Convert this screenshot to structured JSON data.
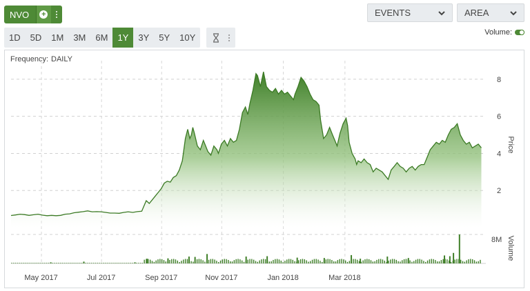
{
  "toolbar": {
    "ticker": "NVO",
    "events_label": "EVENTS",
    "chart_type_label": "AREA",
    "volume_label": "Volume:",
    "frequency_label": "Frequency:",
    "frequency_value": "DAILY",
    "ranges": [
      "1D",
      "5D",
      "1M",
      "3M",
      "6M",
      "1Y",
      "3Y",
      "5Y",
      "10Y"
    ],
    "active_range": "1Y"
  },
  "colors": {
    "accent": "#4e8a36",
    "area_top": "#4a8a34",
    "area_line": "#3b7a24"
  },
  "chart_data": {
    "type": "area",
    "title": "",
    "price_axis_label": "Price",
    "volume_axis_label": "Volume",
    "y_ticks": [
      2,
      4,
      6,
      8
    ],
    "volume_ticks": [
      "8M"
    ],
    "x_ticks": [
      "May 2017",
      "Jul 2017",
      "Sep 2017",
      "Nov 2017",
      "Jan 2018",
      "Mar 2018"
    ],
    "x_tick_months": [
      1,
      3,
      5,
      7,
      9,
      11
    ],
    "x_range_months": [
      0.0,
      13.4
    ],
    "ylim": [
      0,
      9
    ],
    "volume_max": 8,
    "series": [
      {
        "values": [
          [
            0.0,
            0.65
          ],
          [
            0.15,
            0.68
          ],
          [
            0.3,
            0.72
          ],
          [
            0.45,
            0.7
          ],
          [
            0.6,
            0.66
          ],
          [
            0.75,
            0.69
          ],
          [
            0.9,
            0.72
          ],
          [
            1.05,
            0.67
          ],
          [
            1.2,
            0.64
          ],
          [
            1.35,
            0.66
          ],
          [
            1.5,
            0.64
          ],
          [
            1.65,
            0.66
          ],
          [
            1.8,
            0.72
          ],
          [
            1.95,
            0.74
          ],
          [
            2.1,
            0.8
          ],
          [
            2.25,
            0.83
          ],
          [
            2.4,
            0.86
          ],
          [
            2.55,
            0.9
          ],
          [
            2.7,
            0.85
          ],
          [
            2.85,
            0.86
          ],
          [
            3.0,
            0.85
          ],
          [
            3.15,
            0.82
          ],
          [
            3.3,
            0.78
          ],
          [
            3.45,
            0.78
          ],
          [
            3.6,
            0.77
          ],
          [
            3.75,
            0.82
          ],
          [
            3.9,
            0.85
          ],
          [
            4.05,
            0.82
          ],
          [
            4.2,
            0.86
          ],
          [
            4.35,
            0.88
          ],
          [
            4.5,
            1.45
          ],
          [
            4.6,
            1.3
          ],
          [
            4.7,
            1.5
          ],
          [
            4.8,
            1.7
          ],
          [
            4.9,
            1.9
          ],
          [
            5.0,
            2.1
          ],
          [
            5.1,
            2.4
          ],
          [
            5.2,
            2.5
          ],
          [
            5.3,
            2.45
          ],
          [
            5.4,
            2.7
          ],
          [
            5.5,
            2.8
          ],
          [
            5.6,
            3.1
          ],
          [
            5.7,
            3.6
          ],
          [
            5.75,
            4.2
          ],
          [
            5.8,
            4.8
          ],
          [
            5.88,
            5.3
          ],
          [
            5.95,
            4.8
          ],
          [
            6.0,
            5.0
          ],
          [
            6.05,
            5.4
          ],
          [
            6.1,
            5.1
          ],
          [
            6.2,
            4.4
          ],
          [
            6.3,
            4.2
          ],
          [
            6.4,
            4.7
          ],
          [
            6.45,
            4.5
          ],
          [
            6.55,
            4.1
          ],
          [
            6.65,
            3.9
          ],
          [
            6.75,
            4.4
          ],
          [
            6.85,
            4.2
          ],
          [
            6.9,
            4.0
          ],
          [
            7.0,
            4.5
          ],
          [
            7.1,
            4.7
          ],
          [
            7.2,
            4.4
          ],
          [
            7.3,
            4.8
          ],
          [
            7.4,
            4.6
          ],
          [
            7.5,
            4.7
          ],
          [
            7.6,
            5.3
          ],
          [
            7.7,
            6.2
          ],
          [
            7.8,
            6.5
          ],
          [
            7.88,
            6.1
          ],
          [
            7.95,
            6.7
          ],
          [
            8.05,
            7.4
          ],
          [
            8.15,
            8.3
          ],
          [
            8.2,
            8.2
          ],
          [
            8.3,
            7.6
          ],
          [
            8.4,
            8.4
          ],
          [
            8.5,
            7.6
          ],
          [
            8.6,
            7.4
          ],
          [
            8.7,
            7.3
          ],
          [
            8.8,
            7.5
          ],
          [
            8.9,
            7.2
          ],
          [
            9.0,
            7.4
          ],
          [
            9.1,
            7.2
          ],
          [
            9.2,
            7.3
          ],
          [
            9.3,
            7.1
          ],
          [
            9.4,
            6.9
          ],
          [
            9.45,
            7.2
          ],
          [
            9.55,
            7.6
          ],
          [
            9.65,
            8.1
          ],
          [
            9.75,
            7.9
          ],
          [
            9.85,
            7.6
          ],
          [
            9.95,
            7.2
          ],
          [
            10.05,
            6.9
          ],
          [
            10.15,
            6.8
          ],
          [
            10.25,
            6.6
          ],
          [
            10.3,
            5.8
          ],
          [
            10.4,
            4.8
          ],
          [
            10.5,
            5.0
          ],
          [
            10.6,
            5.4
          ],
          [
            10.7,
            5.0
          ],
          [
            10.8,
            4.6
          ],
          [
            10.85,
            4.4
          ],
          [
            10.95,
            5.1
          ],
          [
            11.05,
            5.6
          ],
          [
            11.15,
            5.9
          ],
          [
            11.2,
            5.5
          ],
          [
            11.25,
            4.6
          ],
          [
            11.35,
            4.0
          ],
          [
            11.45,
            3.7
          ],
          [
            11.5,
            3.4
          ],
          [
            11.55,
            3.6
          ],
          [
            11.65,
            3.5
          ],
          [
            11.75,
            3.7
          ],
          [
            11.85,
            3.5
          ],
          [
            11.95,
            3.4
          ],
          [
            12.05,
            3.0
          ],
          [
            12.15,
            3.2
          ],
          [
            12.25,
            3.1
          ],
          [
            12.35,
            3.0
          ],
          [
            12.45,
            2.8
          ],
          [
            12.55,
            2.6
          ],
          [
            12.65,
            3.1
          ],
          [
            12.75,
            3.3
          ],
          [
            12.85,
            3.5
          ],
          [
            12.95,
            3.3
          ],
          [
            13.05,
            3.2
          ],
          [
            13.15,
            3.0
          ],
          [
            13.25,
            3.2
          ],
          [
            13.35,
            3.3
          ],
          [
            13.45,
            3.1
          ],
          [
            13.55,
            3.3
          ],
          [
            13.65,
            3.4
          ],
          [
            13.75,
            3.4
          ],
          [
            13.85,
            3.8
          ],
          [
            13.95,
            4.2
          ],
          [
            14.05,
            4.4
          ],
          [
            14.15,
            4.6
          ],
          [
            14.25,
            4.5
          ],
          [
            14.35,
            4.7
          ],
          [
            14.45,
            4.6
          ],
          [
            14.55,
            5.0
          ],
          [
            14.65,
            5.3
          ],
          [
            14.75,
            5.4
          ],
          [
            14.85,
            5.6
          ],
          [
            14.95,
            5.0
          ],
          [
            15.05,
            4.7
          ],
          [
            15.15,
            4.5
          ],
          [
            15.25,
            4.6
          ],
          [
            15.35,
            4.3
          ],
          [
            15.45,
            4.4
          ],
          [
            15.55,
            4.5
          ],
          [
            15.65,
            4.3
          ]
        ]
      }
    ],
    "volume_spikes": [
      [
        14.9,
        8.0
      ],
      [
        14.7,
        2.9
      ],
      [
        14.4,
        2.2
      ],
      [
        14.58,
        2.0
      ],
      [
        6.5,
        2.6
      ],
      [
        11.3,
        2.3
      ],
      [
        8.5,
        2.0
      ],
      [
        7.8,
        1.9
      ],
      [
        5.9,
        1.9
      ],
      [
        6.1,
        1.8
      ],
      [
        12.5,
        1.9
      ],
      [
        13.2,
        1.5
      ],
      [
        10.4,
        1.5
      ],
      [
        11.6,
        1.3
      ],
      [
        9.5,
        1.6
      ],
      [
        5.2,
        1.4
      ],
      [
        4.5,
        1.3
      ],
      [
        2.4,
        0.5
      ],
      [
        1.3,
        0.3
      ],
      [
        4.1,
        0.3
      ]
    ]
  }
}
